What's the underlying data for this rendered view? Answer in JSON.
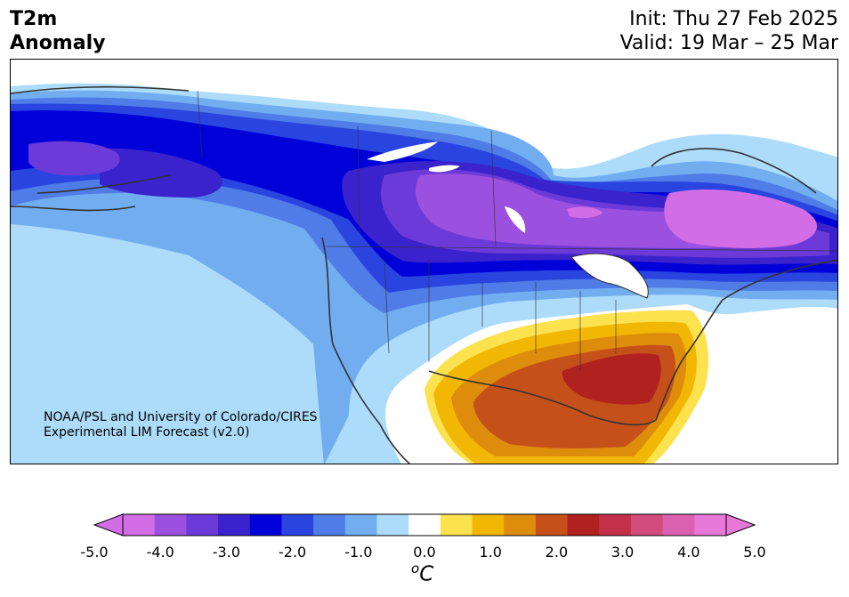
{
  "title": {
    "variable": "T2m",
    "subtitle": "Anomaly",
    "init": "Init: Thu 27 Feb 2025",
    "valid": "Valid: 19 Mar – 25 Mar"
  },
  "credit": {
    "line1": "NOAA/PSL and University of Colorado/CIRES",
    "line2": "Experimental LIM Forecast (v2.0)"
  },
  "colorbar": {
    "unit": "C",
    "unit_prefix": "o",
    "levels": [
      -5.0,
      -4.5,
      -4.0,
      -3.5,
      -3.0,
      -2.5,
      -2.0,
      -1.5,
      -1.0,
      -0.5,
      0.5,
      1.0,
      1.5,
      2.0,
      2.5,
      3.0,
      3.5,
      4.0,
      4.5,
      5.0
    ],
    "tick_labels": [
      "-5.0",
      "-4.0",
      "-3.0",
      "-2.0",
      "-1.0",
      "0.0",
      "1.0",
      "2.0",
      "3.0",
      "4.0",
      "5.0"
    ],
    "colors": [
      "#d26de6",
      "#9c50e0",
      "#6c3ad8",
      "#3a22cc",
      "#0000d8",
      "#2a44e0",
      "#4f7ce6",
      "#72adf0",
      "#acdcfa",
      "#ffffff",
      "#fde24f",
      "#f2b705",
      "#de8c0c",
      "#c6501a",
      "#b0221f",
      "#c2304a",
      "#d24c7c",
      "#dc60b0",
      "#e878d8"
    ],
    "extend_low_color": "#d26de6",
    "extend_high_color": "#e878d8"
  },
  "map": {
    "region": "North America",
    "land_line_color": "#333333"
  }
}
